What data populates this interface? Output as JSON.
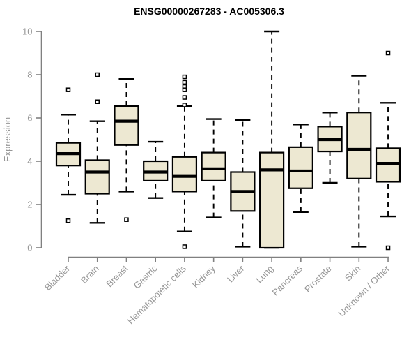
{
  "page": {
    "title": "ENSG00000267283 - AC005306.3"
  },
  "chart_data": {
    "type": "boxplot",
    "title": "ENSG00000267283 - AC005306.3",
    "xlabel": "",
    "ylabel": "Expression",
    "ylim": [
      0,
      10
    ],
    "yticks": [
      0,
      2,
      4,
      6,
      8,
      10
    ],
    "grid": false,
    "legend": "none",
    "categories": [
      "Bladder",
      "Brain",
      "Breast",
      "Gastric",
      "Hematopoietic cells",
      "Kidney",
      "Liver",
      "Lung",
      "Pancreas",
      "Prostate",
      "Skin",
      "Unknown / Other"
    ],
    "series": [
      {
        "name": "Bladder",
        "low": 2.45,
        "q1": 3.8,
        "median": 4.35,
        "q3": 4.85,
        "high": 6.15,
        "outliers": [
          7.3,
          1.25
        ]
      },
      {
        "name": "Brain",
        "low": 1.15,
        "q1": 2.5,
        "median": 3.5,
        "q3": 4.05,
        "high": 5.85,
        "outliers": [
          8.0,
          6.75
        ]
      },
      {
        "name": "Breast",
        "low": 2.6,
        "q1": 4.75,
        "median": 5.85,
        "q3": 6.55,
        "high": 7.8,
        "outliers": [
          1.3
        ]
      },
      {
        "name": "Gastric",
        "low": 2.3,
        "q1": 3.1,
        "median": 3.5,
        "q3": 4.0,
        "high": 4.9,
        "outliers": []
      },
      {
        "name": "Hematopoietic cells",
        "low": 0.75,
        "q1": 2.6,
        "median": 3.3,
        "q3": 4.2,
        "high": 6.55,
        "outliers": [
          7.9,
          7.65,
          7.45,
          7.3,
          6.95,
          6.6,
          0.05
        ]
      },
      {
        "name": "Kidney",
        "low": 1.4,
        "q1": 3.1,
        "median": 3.65,
        "q3": 4.4,
        "high": 5.95,
        "outliers": []
      },
      {
        "name": "Liver",
        "low": 0.05,
        "q1": 1.7,
        "median": 2.6,
        "q3": 3.5,
        "high": 5.9,
        "outliers": []
      },
      {
        "name": "Lung",
        "low": 0.0,
        "q1": 0.0,
        "median": 3.6,
        "q3": 4.4,
        "high": 10.0,
        "outliers": []
      },
      {
        "name": "Pancreas",
        "low": 1.65,
        "q1": 2.75,
        "median": 3.55,
        "q3": 4.65,
        "high": 5.7,
        "outliers": []
      },
      {
        "name": "Prostate",
        "low": 3.0,
        "q1": 4.45,
        "median": 5.0,
        "q3": 5.6,
        "high": 6.25,
        "outliers": []
      },
      {
        "name": "Skin",
        "low": 0.05,
        "q1": 3.2,
        "median": 4.55,
        "q3": 6.25,
        "high": 7.95,
        "outliers": []
      },
      {
        "name": "Unknown / Other",
        "low": 1.45,
        "q1": 3.05,
        "median": 3.9,
        "q3": 4.6,
        "high": 6.7,
        "outliers": [
          9.0,
          0.0
        ]
      }
    ],
    "colors": {
      "box_fill": "#EDE8D2",
      "box_stroke": "#000000",
      "median_stroke": "#000000",
      "whisker_stroke": "#000000",
      "axis_line": "#808080",
      "tick_label": "#969696",
      "axis_label": "#969696",
      "title_text": "#000000",
      "background": "#FFFFFF"
    }
  }
}
